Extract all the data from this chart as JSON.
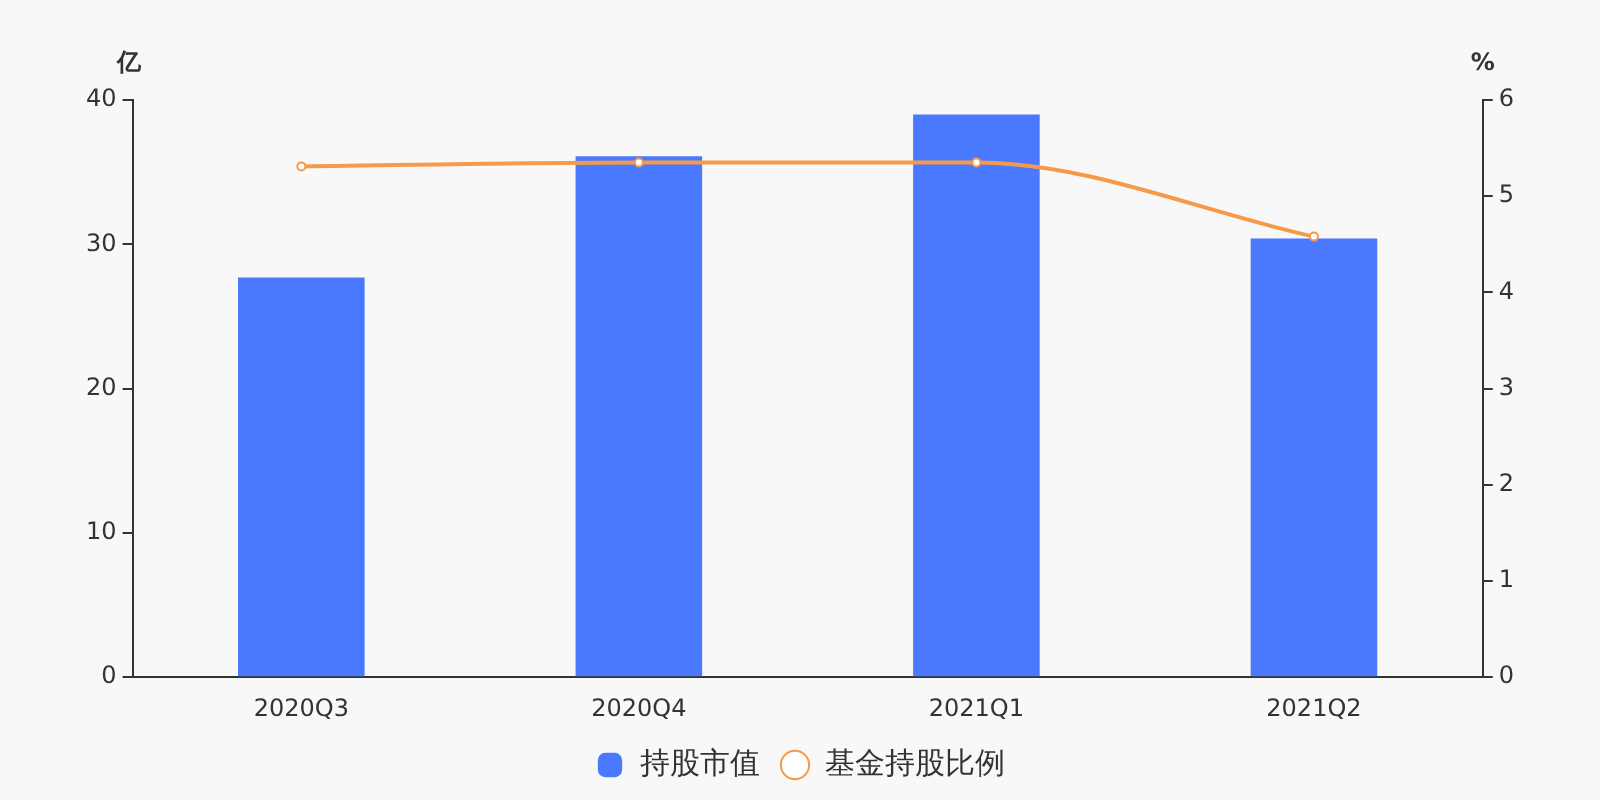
{
  "chart_data": {
    "type": "bar",
    "ylabel": "亿",
    "y2label": "%",
    "categories": [
      "2020Q3",
      "2020Q4",
      "2021Q1",
      "2021Q2"
    ],
    "series": [
      {
        "name": "持股市值",
        "color": "#4a78ff",
        "values": [
          27.7,
          36.1,
          39.0,
          30.4
        ]
      },
      {
        "name": "基金持股比例",
        "type": "line",
        "axis": "y2",
        "color": "#f59a48",
        "values": [
          5.31,
          5.35,
          5.35,
          4.58
        ]
      }
    ],
    "ylim": [
      0,
      40
    ],
    "yticks": [
      0,
      10,
      20,
      30,
      40
    ],
    "y2lim": [
      0,
      6
    ],
    "y2ticks": [
      0,
      1,
      2,
      3,
      4,
      5,
      6
    ],
    "grid": false,
    "legend": "bottom",
    "marker": "circle"
  }
}
